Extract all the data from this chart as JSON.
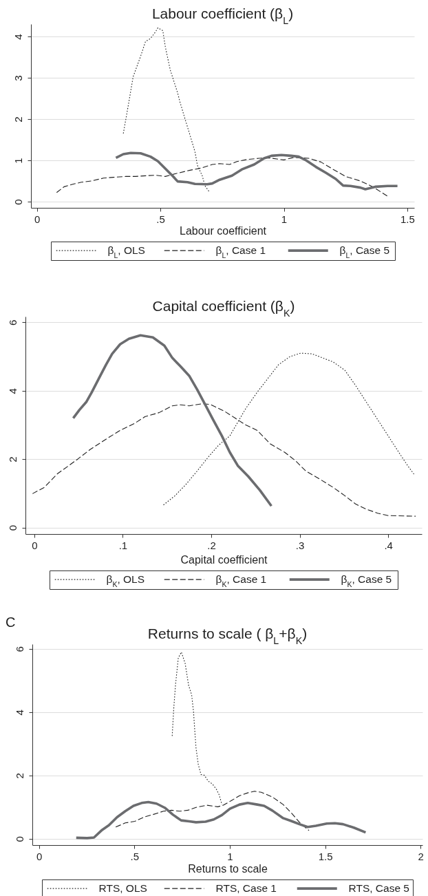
{
  "chart_data": [
    {
      "type": "line",
      "title": "Labour coefficient (β$_{L}$)",
      "xlabel": "Labour coefficient",
      "xlim": [
        -0.024,
        1.528
      ],
      "ylim": [
        -0.15,
        4.3
      ],
      "xticks": [
        0,
        {
          "value": 0.5,
          "label": ".5"
        },
        1,
        1.5
      ],
      "yticks": [
        0,
        1,
        2,
        3,
        4
      ],
      "grid": "y",
      "legend": "bottom",
      "series": [
        {
          "name": "β$_{L}$, OLS",
          "color": "#1f1f1f",
          "line_style": "dotted",
          "x": [
            0.35,
            0.37,
            0.39,
            0.42,
            0.44,
            0.46,
            0.48,
            0.49,
            0.51,
            0.52,
            0.54,
            0.57,
            0.58,
            0.6,
            0.62,
            0.64,
            0.65,
            0.67,
            0.68,
            0.7
          ],
          "values": [
            1.65,
            2.33,
            3.03,
            3.52,
            3.88,
            3.95,
            4.11,
            4.21,
            4.14,
            3.75,
            3.19,
            2.63,
            2.4,
            2.0,
            1.61,
            1.21,
            0.88,
            0.62,
            0.39,
            0.22
          ]
        },
        {
          "name": "β$_{L}$, Case 1",
          "color": "#1f1f1f",
          "line_style": "dashed",
          "x": [
            0.08,
            0.11,
            0.15,
            0.18,
            0.22,
            0.27,
            0.31,
            0.36,
            0.4,
            0.45,
            0.48,
            0.52,
            0.57,
            0.62,
            0.67,
            0.71,
            0.74,
            0.78,
            0.81,
            0.85,
            0.9,
            0.94,
            1.0,
            1.04,
            1.1,
            1.15,
            1.2,
            1.25,
            1.31,
            1.36,
            1.42
          ],
          "values": [
            0.22,
            0.36,
            0.43,
            0.47,
            0.5,
            0.57,
            0.59,
            0.61,
            0.61,
            0.63,
            0.64,
            0.61,
            0.69,
            0.76,
            0.82,
            0.9,
            0.92,
            0.9,
            0.97,
            1.02,
            1.05,
            1.06,
            1.01,
            1.07,
            1.05,
            0.96,
            0.78,
            0.61,
            0.5,
            0.36,
            0.13
          ]
        },
        {
          "name": "β$_{L}$, Case 5",
          "color": "#6b6c6f",
          "line_style": "solid",
          "x": [
            0.32,
            0.35,
            0.38,
            0.42,
            0.46,
            0.49,
            0.52,
            0.55,
            0.57,
            0.61,
            0.64,
            0.69,
            0.71,
            0.74,
            0.79,
            0.83,
            0.88,
            0.92,
            0.95,
            0.99,
            1.03,
            1.06,
            1.09,
            1.13,
            1.17,
            1.21,
            1.24,
            1.27,
            1.31,
            1.33,
            1.37,
            1.42,
            1.46
          ],
          "values": [
            1.06,
            1.15,
            1.18,
            1.17,
            1.09,
            0.98,
            0.8,
            0.62,
            0.49,
            0.47,
            0.43,
            0.42,
            0.44,
            0.53,
            0.63,
            0.78,
            0.9,
            1.05,
            1.11,
            1.13,
            1.11,
            1.09,
            1.0,
            0.84,
            0.7,
            0.55,
            0.39,
            0.38,
            0.34,
            0.3,
            0.36,
            0.38,
            0.38
          ]
        }
      ]
    },
    {
      "type": "line",
      "title": "Capital coefficient (β$_{K}$)",
      "xlabel": "Capital coefficient",
      "xlim": [
        -0.01,
        0.438
      ],
      "ylim": [
        -0.19,
        6.17
      ],
      "xticks": [
        0,
        {
          "value": 0.1,
          "label": ".1"
        },
        {
          "value": 0.2,
          "label": ".2"
        },
        {
          "value": 0.3,
          "label": ".3"
        },
        {
          "value": 0.4,
          "label": ".4"
        }
      ],
      "yticks": [
        0,
        2,
        4,
        6
      ],
      "grid": "y",
      "legend": "bottom",
      "series": [
        {
          "name": "β$_{K}$, OLS",
          "color": "#1f1f1f",
          "line_style": "dotted",
          "x": [
            0.146,
            0.159,
            0.171,
            0.184,
            0.196,
            0.208,
            0.221,
            0.23,
            0.239,
            0.252,
            0.264,
            0.276,
            0.289,
            0.301,
            0.314,
            0.326,
            0.338,
            0.351,
            0.363,
            0.375,
            0.388,
            0.4,
            0.412,
            0.422,
            0.43
          ],
          "values": [
            0.66,
            0.93,
            1.25,
            1.65,
            2.04,
            2.4,
            2.68,
            3.08,
            3.48,
            3.96,
            4.36,
            4.76,
            5.0,
            5.1,
            5.08,
            4.96,
            4.84,
            4.6,
            4.16,
            3.68,
            3.16,
            2.68,
            2.2,
            1.81,
            1.53
          ]
        },
        {
          "name": "β$_{K}$, Case 1",
          "color": "#1f1f1f",
          "line_style": "dashed",
          "x": [
            -0.002,
            0.011,
            0.026,
            0.039,
            0.049,
            0.063,
            0.082,
            0.097,
            0.113,
            0.125,
            0.141,
            0.156,
            0.165,
            0.175,
            0.19,
            0.199,
            0.215,
            0.227,
            0.239,
            0.252,
            0.267,
            0.283,
            0.295,
            0.307,
            0.323,
            0.338,
            0.351,
            0.363,
            0.375,
            0.388,
            0.4,
            0.431
          ],
          "values": [
            0.99,
            1.17,
            1.57,
            1.81,
            2.0,
            2.28,
            2.6,
            2.84,
            3.04,
            3.24,
            3.36,
            3.56,
            3.59,
            3.56,
            3.62,
            3.6,
            3.4,
            3.2,
            3.0,
            2.84,
            2.44,
            2.2,
            1.96,
            1.65,
            1.41,
            1.17,
            0.93,
            0.69,
            0.54,
            0.42,
            0.35,
            0.33
          ]
        },
        {
          "name": "β$_{K}$, Case 5",
          "color": "#6b6c6f",
          "line_style": "solid",
          "x": [
            0.044,
            0.051,
            0.059,
            0.065,
            0.073,
            0.081,
            0.088,
            0.097,
            0.107,
            0.12,
            0.134,
            0.147,
            0.156,
            0.165,
            0.175,
            0.184,
            0.193,
            0.202,
            0.212,
            0.221,
            0.23,
            0.242,
            0.255,
            0.268
          ],
          "values": [
            3.2,
            3.44,
            3.68,
            3.96,
            4.36,
            4.76,
            5.08,
            5.36,
            5.52,
            5.62,
            5.56,
            5.32,
            4.96,
            4.72,
            4.44,
            4.04,
            3.6,
            3.16,
            2.68,
            2.2,
            1.81,
            1.49,
            1.09,
            0.63
          ]
        }
      ]
    },
    {
      "type": "line",
      "title": "Returns to scale ( β$_{L}$+β$_{K}$)",
      "xlabel": "Returns to scale",
      "annotations": [
        "C"
      ],
      "xlim": [
        -0.035,
        2.01
      ],
      "ylim": [
        -0.2,
        6.15
      ],
      "xticks": [
        0,
        {
          "value": 0.5,
          "label": ".5"
        },
        1,
        1.5,
        2
      ],
      "yticks": [
        0,
        2,
        4,
        6
      ],
      "grid": "y",
      "legend": "bottom",
      "series": [
        {
          "name": "RTS, OLS",
          "color": "#1f1f1f",
          "line_style": "dotted",
          "x": [
            0.698,
            0.706,
            0.716,
            0.73,
            0.746,
            0.766,
            0.784,
            0.8,
            0.81,
            0.816,
            0.823,
            0.835,
            0.849,
            0.866,
            0.887,
            0.909,
            0.93,
            0.944,
            0.959
          ],
          "values": [
            3.25,
            4.1,
            4.9,
            5.71,
            5.9,
            5.54,
            4.85,
            4.55,
            4.0,
            3.46,
            2.86,
            2.34,
            2.03,
            2.01,
            1.82,
            1.73,
            1.56,
            1.39,
            1.08
          ]
        },
        {
          "name": "RTS, Case 1",
          "color": "#1f1f1f",
          "line_style": "dashed",
          "x": [
            0.402,
            0.452,
            0.502,
            0.552,
            0.595,
            0.652,
            0.695,
            0.738,
            0.78,
            0.823,
            0.88,
            0.937,
            0.966,
            1.009,
            1.051,
            1.094,
            1.13,
            1.165,
            1.223,
            1.28,
            1.322,
            1.365,
            1.415
          ],
          "values": [
            0.37,
            0.5,
            0.55,
            0.69,
            0.76,
            0.87,
            0.9,
            0.87,
            0.9,
            0.99,
            1.06,
            1.01,
            1.06,
            1.21,
            1.36,
            1.45,
            1.5,
            1.47,
            1.32,
            1.08,
            0.82,
            0.52,
            0.26
          ]
        },
        {
          "name": "RTS, Case 5",
          "color": "#6b6c6f",
          "line_style": "solid",
          "x": [
            0.195,
            0.252,
            0.288,
            0.331,
            0.367,
            0.409,
            0.452,
            0.495,
            0.538,
            0.573,
            0.616,
            0.659,
            0.702,
            0.745,
            0.787,
            0.823,
            0.873,
            0.916,
            0.959,
            1.001,
            1.051,
            1.094,
            1.144,
            1.18,
            1.223,
            1.28,
            1.322,
            1.365,
            1.408,
            1.451,
            1.508,
            1.551,
            1.593,
            1.651,
            1.712
          ],
          "values": [
            0.03,
            0.02,
            0.04,
            0.28,
            0.43,
            0.68,
            0.87,
            1.04,
            1.13,
            1.16,
            1.11,
            0.98,
            0.76,
            0.58,
            0.55,
            0.52,
            0.54,
            0.61,
            0.75,
            0.95,
            1.08,
            1.13,
            1.08,
            1.04,
            0.89,
            0.65,
            0.56,
            0.46,
            0.37,
            0.41,
            0.48,
            0.49,
            0.46,
            0.35,
            0.2
          ]
        }
      ]
    }
  ]
}
